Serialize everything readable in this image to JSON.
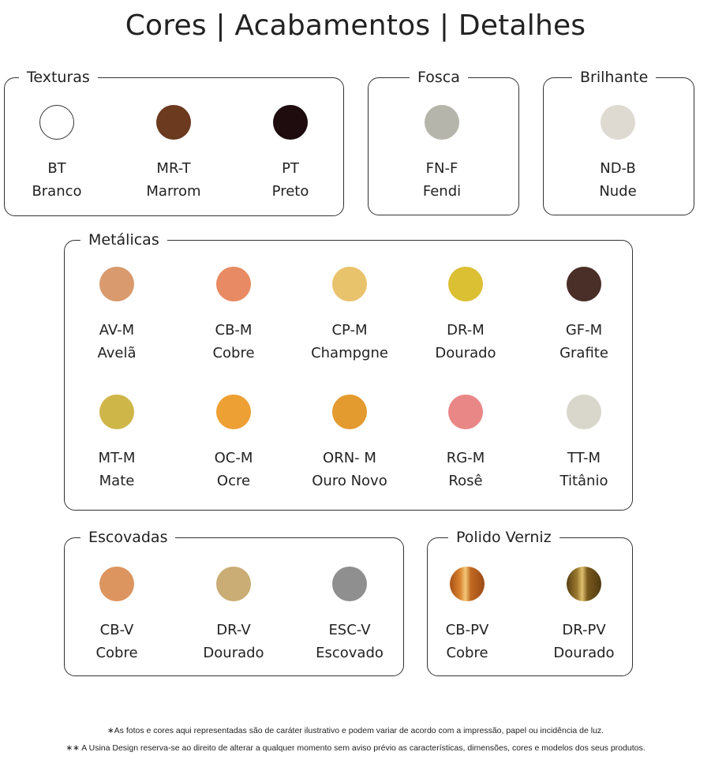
{
  "title": "Cores | Acabamentos | Detalhes",
  "groups": [
    {
      "label": "Texturas",
      "items": [
        {
          "code": "BT",
          "name": "Branco",
          "color": "#ffffff"
        },
        {
          "code": "MR-T",
          "name": "Marrom",
          "color": "#6b3a1f"
        },
        {
          "code": "PT",
          "name": "Preto",
          "color": "#1e0c0e"
        }
      ]
    },
    {
      "label": "Fosca",
      "items": [
        {
          "code": "FN-F",
          "name": "Fendi",
          "color": "#b5b5ab"
        }
      ]
    },
    {
      "label": "Brilhante",
      "items": [
        {
          "code": "ND-B",
          "name": "Nude",
          "color": "#dedad2"
        }
      ]
    },
    {
      "label": "Metálicas",
      "items": [
        {
          "code": "AV-M",
          "name": "Avelã",
          "color": "#d99a6e"
        },
        {
          "code": "CB-M",
          "name": "Cobre",
          "color": "#e88a63"
        },
        {
          "code": "CP-M",
          "name": "Champgne",
          "color": "#e9c26c"
        },
        {
          "code": "DR-M",
          "name": "Dourado",
          "color": "#dcc034"
        },
        {
          "code": "GF-M",
          "name": "Grafite",
          "color": "#4a2e28"
        },
        {
          "code": "MT-M",
          "name": "Mate",
          "color": "#cfb649"
        },
        {
          "code": "OC-M",
          "name": "Ocre",
          "color": "#eda033"
        },
        {
          "code": "ORN- M",
          "name": "Ouro Novo",
          "color": "#e39a2e"
        },
        {
          "code": "RG-M",
          "name": "Rosê",
          "color": "#e98787"
        },
        {
          "code": "TT-M",
          "name": "Titânio",
          "color": "#d9d6cc"
        }
      ]
    },
    {
      "label": "Escovadas",
      "items": [
        {
          "code": "CB-V",
          "name": "Cobre",
          "color": "#dd9560"
        },
        {
          "code": "DR-V",
          "name": "Dourado",
          "color": "#c9ad74"
        },
        {
          "code": "ESC-V",
          "name": "Escovado",
          "color": "#8f8f8f"
        }
      ]
    },
    {
      "label": "Polido Verniz",
      "items": [
        {
          "code": "CB-PV",
          "name": "Cobre",
          "color": "#c9691f",
          "gradient": "linear-gradient(90deg,#a84f15,#d98430 30%,#f2c878 45%,#c06a22 60%,#9d4a16)"
        },
        {
          "code": "DR-PV",
          "name": "Dourado",
          "color": "#7a5a1d",
          "gradient": "linear-gradient(90deg,#5a4015,#9a7a30 30%,#e0c070 45%,#7a5a1d 60%,#4f3a12)"
        }
      ]
    }
  ],
  "notes": [
    "∗As fotos e cores aqui representadas são de caráter ilustrativo e podem variar de acordo com a impressão, papel ou incidência de luz.",
    "∗∗ A Usina Design reserva-se ao direito de alterar a qualquer momento sem  aviso prévio  as características, dimensões, cores e modelos dos seus produtos."
  ]
}
